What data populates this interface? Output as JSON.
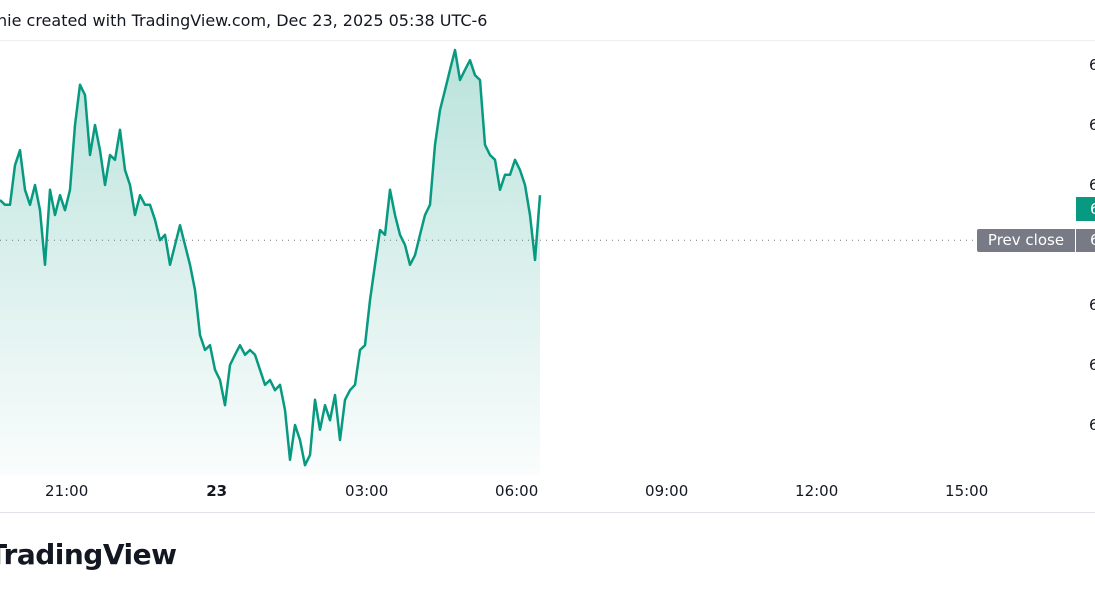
{
  "header": {
    "caption": "nie created with TradingView.com, Dec 23, 2025 05:38 UTC-6"
  },
  "logo": "TradingView",
  "colors": {
    "line": "#089981",
    "prev_close": "#787b86",
    "text": "#131722"
  },
  "chart_data": {
    "type": "area",
    "x_ticks": [
      {
        "label": "21:00",
        "time": "21:00"
      },
      {
        "label": "23",
        "time": "00:00",
        "bold": true
      },
      {
        "label": "03:00",
        "time": "03:00"
      },
      {
        "label": "06:00",
        "time": "06:00"
      },
      {
        "label": "09:00",
        "time": "09:00"
      },
      {
        "label": "12:00",
        "time": "12:00"
      },
      {
        "label": "15:00",
        "time": "15:00"
      }
    ],
    "y_ticks": [
      {
        "label": "6",
        "level": 7
      },
      {
        "label": "6",
        "level": 6
      },
      {
        "label": "6",
        "level": 5
      },
      {
        "label": "6",
        "level": 3
      },
      {
        "label": "6",
        "level": 2
      },
      {
        "label": "6",
        "level": 1
      }
    ],
    "current_price_label": "6",
    "current_level": 4.6,
    "prev_close": {
      "label": "Prev close",
      "value_label": "6",
      "level": 4.08
    },
    "x": [
      "19:40",
      "19:46",
      "19:52",
      "19:58",
      "20:04",
      "20:10",
      "20:16",
      "20:22",
      "20:28",
      "20:34",
      "20:40",
      "20:46",
      "20:52",
      "20:58",
      "21:04",
      "21:10",
      "21:16",
      "21:22",
      "21:28",
      "21:34",
      "21:40",
      "21:46",
      "21:52",
      "21:58",
      "22:04",
      "22:10",
      "22:16",
      "22:22",
      "22:28",
      "22:34",
      "22:40",
      "22:46",
      "22:52",
      "22:58",
      "23:04",
      "23:10",
      "23:16",
      "23:22",
      "23:28",
      "23:34",
      "23:40",
      "23:46",
      "23:52",
      "23:58",
      "00:04",
      "00:10",
      "00:16",
      "00:22",
      "00:28",
      "00:34",
      "00:40",
      "00:46",
      "00:52",
      "00:58",
      "01:04",
      "01:10",
      "01:16",
      "01:22",
      "01:28",
      "01:34",
      "01:40",
      "01:46",
      "01:52",
      "01:58",
      "02:04",
      "02:10",
      "02:16",
      "02:22",
      "02:28",
      "02:34",
      "02:40",
      "02:46",
      "02:52",
      "02:58",
      "03:04",
      "03:10",
      "03:16",
      "03:22",
      "03:28",
      "03:34",
      "03:40",
      "03:46",
      "03:52",
      "03:58",
      "04:04",
      "04:10",
      "04:16",
      "04:22",
      "04:28",
      "04:34",
      "04:40",
      "04:46",
      "04:52",
      "04:58",
      "05:04",
      "05:10",
      "05:16",
      "05:22",
      "05:28",
      "05:34",
      "05:40",
      "05:46",
      "05:52",
      "05:58",
      "06:04",
      "06:10",
      "06:16",
      "06:22",
      "06:28"
    ],
    "values": [
      4.75,
      4.67,
      4.67,
      5.33,
      5.58,
      4.92,
      4.67,
      5.0,
      4.58,
      3.67,
      4.92,
      4.5,
      4.83,
      4.58,
      4.92,
      6.0,
      6.67,
      6.5,
      5.5,
      6.0,
      5.58,
      5.0,
      5.5,
      5.42,
      5.92,
      5.25,
      5.0,
      4.5,
      4.83,
      4.67,
      4.67,
      4.42,
      4.08,
      4.17,
      3.67,
      4.0,
      4.33,
      4.0,
      3.67,
      3.25,
      2.5,
      2.25,
      2.33,
      1.92,
      1.75,
      1.33,
      2.0,
      2.17,
      2.33,
      2.17,
      2.25,
      2.17,
      1.92,
      1.67,
      1.75,
      1.58,
      1.67,
      1.25,
      0.42,
      1.0,
      0.75,
      0.33,
      0.5,
      1.42,
      0.92,
      1.33,
      1.08,
      1.5,
      0.75,
      1.42,
      1.58,
      1.67,
      2.25,
      2.33,
      3.08,
      3.67,
      4.25,
      4.17,
      4.92,
      4.5,
      4.17,
      4.0,
      3.67,
      3.83,
      4.17,
      4.5,
      4.67,
      5.67,
      6.25,
      6.58,
      6.92,
      7.25,
      6.75,
      6.92,
      7.08,
      6.83,
      6.75,
      5.67,
      5.5,
      5.42,
      4.92,
      5.17,
      5.17,
      5.42,
      5.25,
      5.0,
      4.5,
      3.75,
      4.83
    ]
  }
}
